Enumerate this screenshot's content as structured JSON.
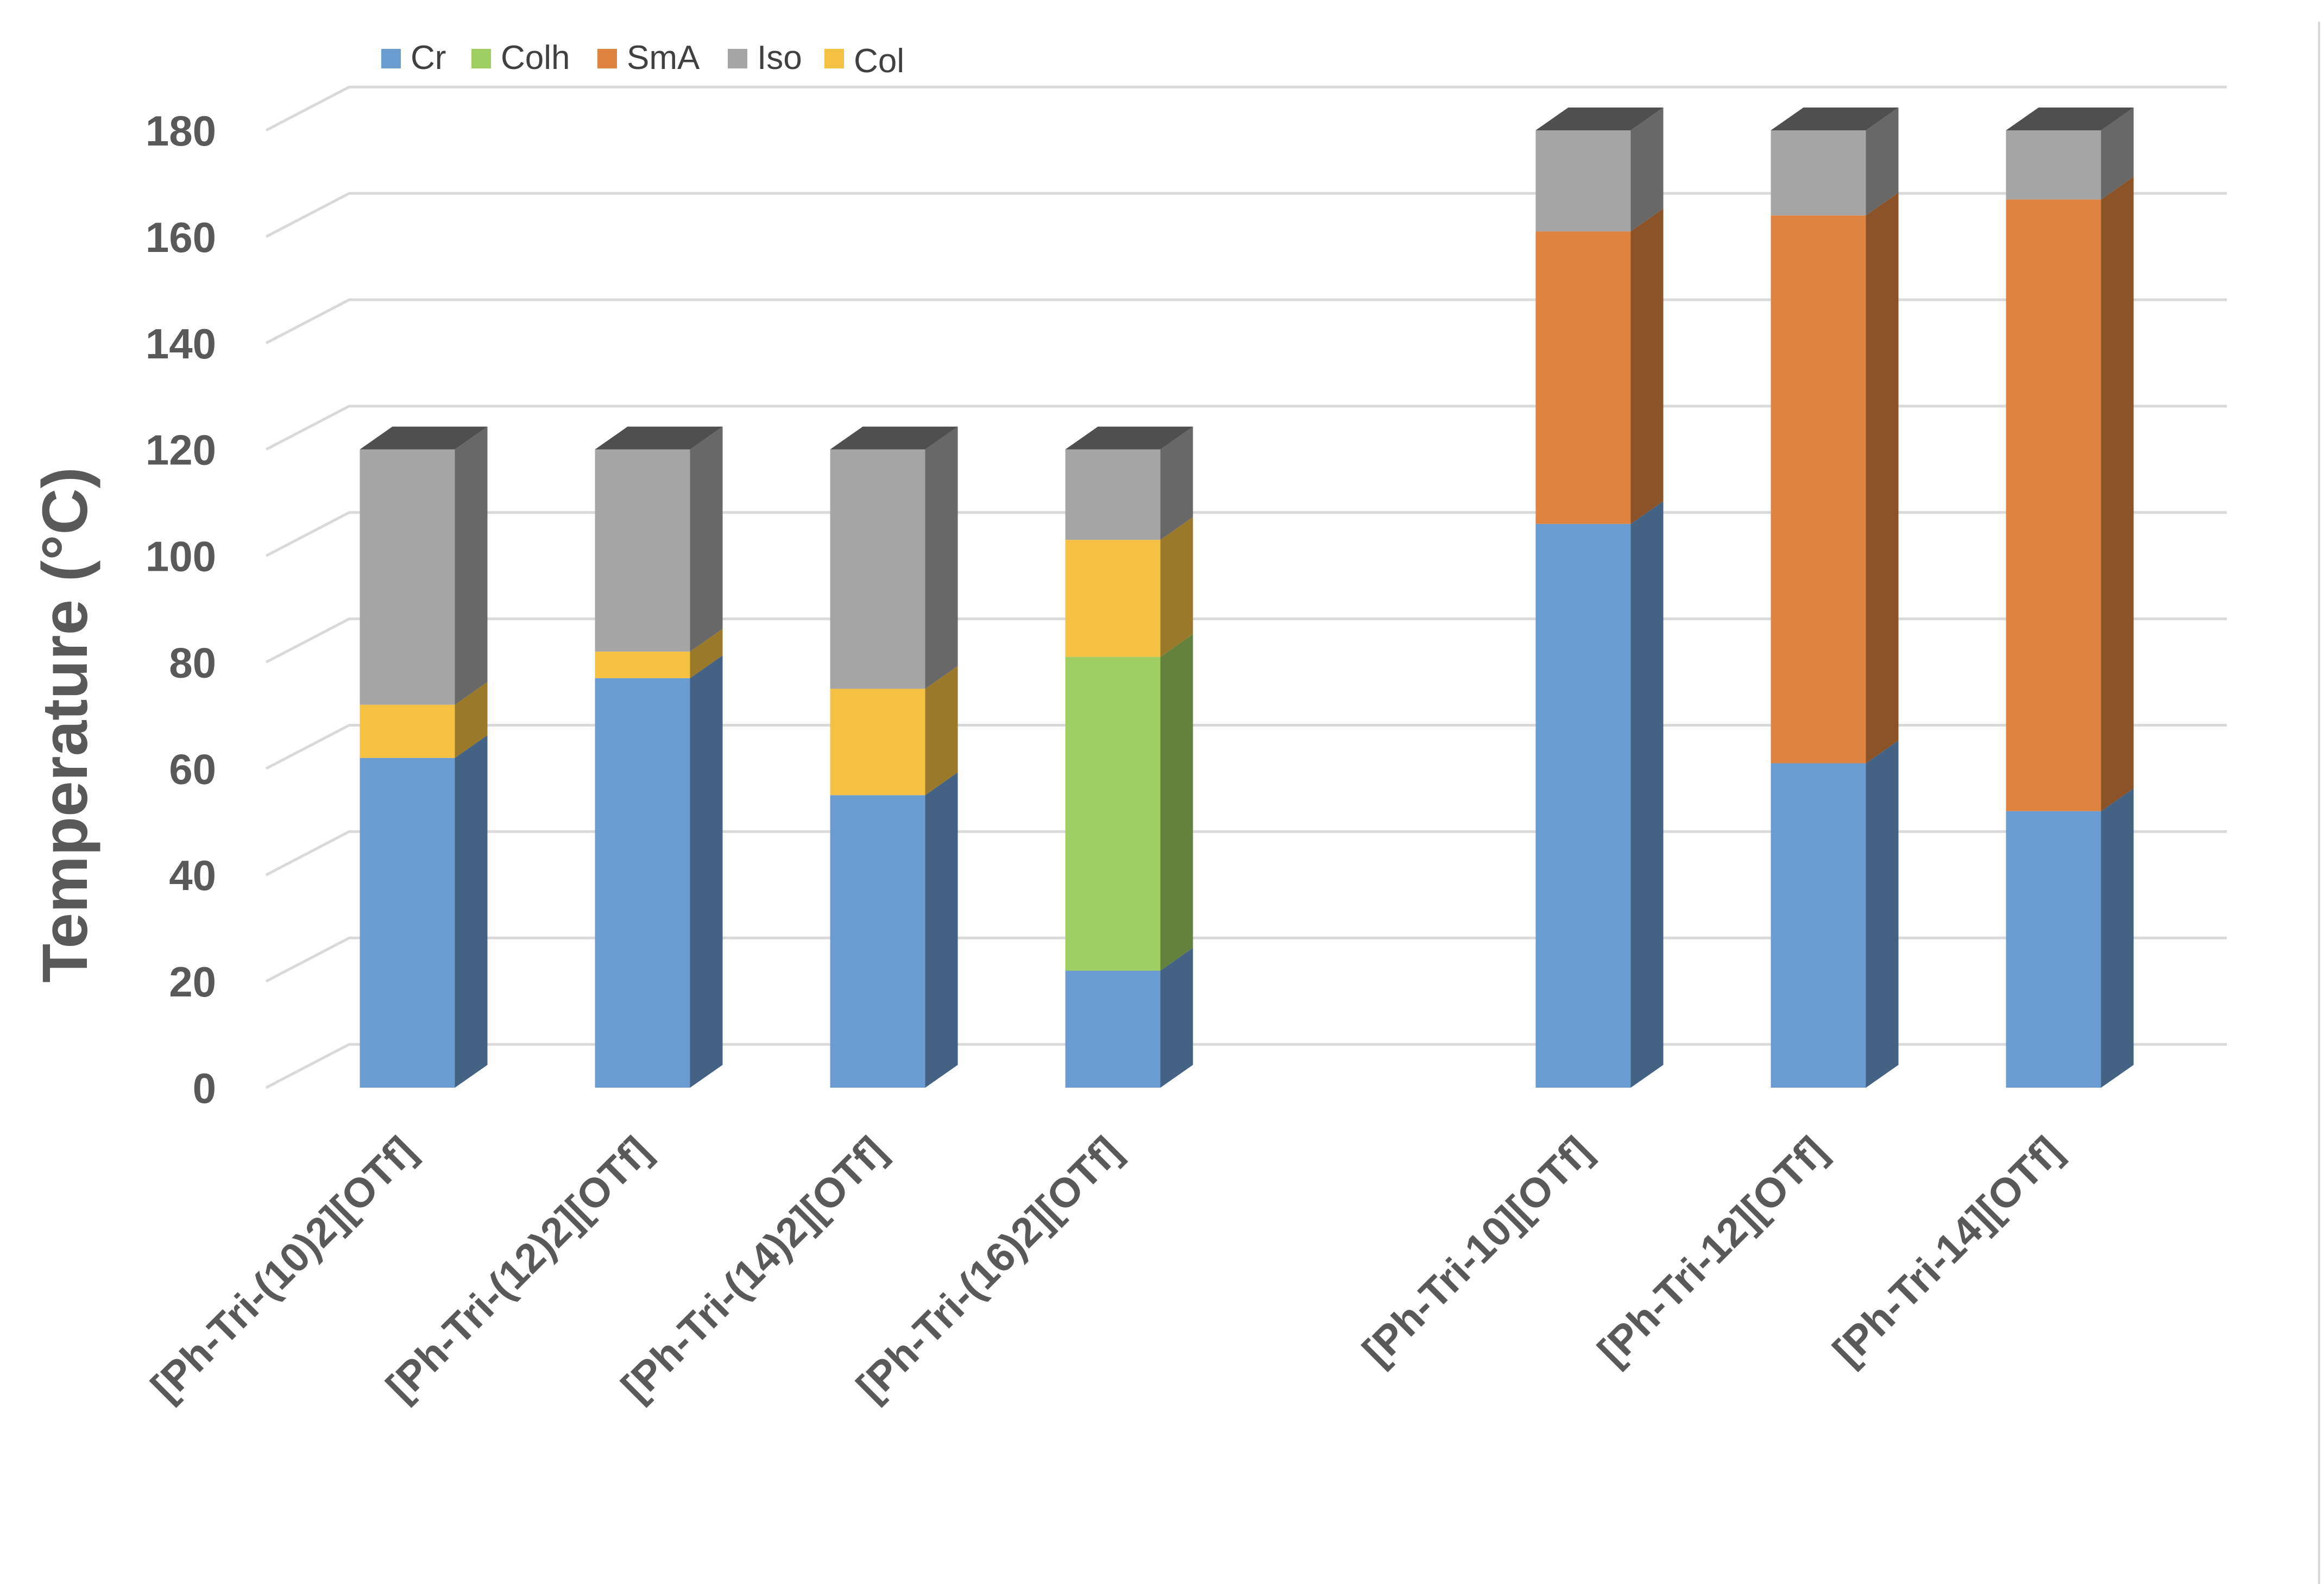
{
  "chart_data": {
    "type": "bar",
    "stacked": true,
    "three_d": true,
    "title": "",
    "xlabel": "",
    "ylabel": "Temperature (°C)",
    "ylim": [
      0,
      180
    ],
    "yticks": [
      0,
      20,
      40,
      60,
      80,
      100,
      120,
      140,
      160,
      180
    ],
    "grid": true,
    "legend_position": "top-left",
    "legend": [
      {
        "name": "Cr",
        "color": "#6A9BD1"
      },
      {
        "name": "Colh",
        "color": "#9FCE62"
      },
      {
        "name": "SmA",
        "color": "#DE8340"
      },
      {
        "name": "Iso",
        "color": "#A5A5A5"
      },
      {
        "name": "Col",
        "color": "#F4C143"
      }
    ],
    "categories": [
      "[Ph-Tri-(10)2][OTf]",
      "[Ph-Tri-(12)2][OTf]",
      "[Ph-Tri-(14)2][OTf]",
      "[Ph-Tri-(16)2][OTf]",
      "",
      "[Ph-Tri-10][OTf]",
      "[Ph-Tri-12][OTf]",
      "[Ph-Tri-14][OTf]"
    ],
    "series_order": [
      "Cr",
      "Colh",
      "SmA",
      "Col",
      "Iso"
    ],
    "series": [
      {
        "name": "Cr",
        "color": "#6A9BD1",
        "values": [
          62,
          77,
          55,
          22,
          null,
          106,
          61,
          52
        ]
      },
      {
        "name": "Colh",
        "color": "#9FCE62",
        "values": [
          0,
          0,
          0,
          59,
          null,
          0,
          0,
          0
        ]
      },
      {
        "name": "SmA",
        "color": "#DE8340",
        "values": [
          0,
          0,
          0,
          0,
          null,
          55,
          103,
          115
        ]
      },
      {
        "name": "Col",
        "color": "#F4C143",
        "values": [
          10,
          5,
          20,
          22,
          null,
          0,
          0,
          0
        ]
      },
      {
        "name": "Iso",
        "color": "#A5A5A5",
        "values": [
          48,
          38,
          45,
          17,
          null,
          19,
          16,
          13
        ]
      }
    ]
  }
}
